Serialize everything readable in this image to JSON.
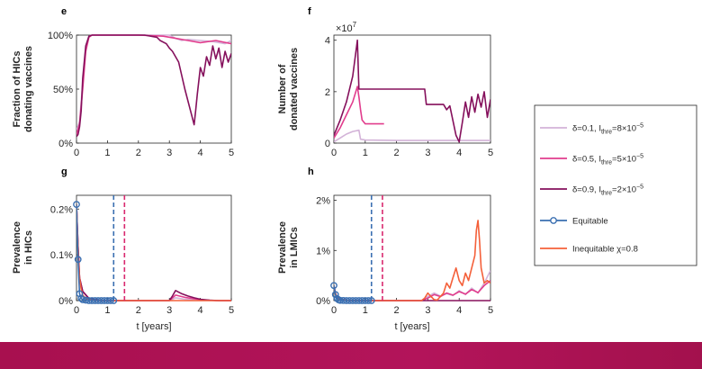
{
  "colors": {
    "delta01": "#d3b3d8",
    "delta05": "#e13d8d",
    "delta09": "#85105c",
    "equitable": "#3a6fb1",
    "inequitable": "#f4603a",
    "vline_blue": "#3a6fb1",
    "vline_pink": "#d9286e",
    "bottom_bar": "#a8104f"
  },
  "legend": {
    "entries": [
      {
        "key": "delta01",
        "pre": "δ=0.1, I",
        "sub": "thre",
        "post": "=8×10",
        "sup": "−5",
        "style": "line",
        "color": "#d3b3d8"
      },
      {
        "key": "delta05",
        "pre": "δ=0.5, I",
        "sub": "thre",
        "post": "=5×10",
        "sup": "−5",
        "style": "line",
        "color": "#e13d8d"
      },
      {
        "key": "delta09",
        "pre": "δ=0.9, I",
        "sub": "thre",
        "post": "=2×10",
        "sup": "−5",
        "style": "line",
        "color": "#85105c"
      },
      {
        "key": "equitable",
        "pre": "Equitable",
        "sub": "",
        "post": "",
        "sup": "",
        "style": "marker",
        "color": "#3a6fb1"
      },
      {
        "key": "inequitable",
        "pre": "Inequitable χ=0.8",
        "sub": "",
        "post": "",
        "sup": "",
        "style": "line",
        "color": "#f4603a"
      }
    ]
  },
  "chart_data": [
    {
      "panel": "e",
      "type": "line",
      "ylabel_lines": [
        "Fraction of HICs",
        "donating vaccines"
      ],
      "xlabel": "",
      "xlim": [
        0,
        5
      ],
      "ylim": [
        0,
        1
      ],
      "x_ticks": [
        0,
        1,
        2,
        3,
        4,
        5
      ],
      "x_tick_labels": [
        "0",
        "1",
        "2",
        "3",
        "4",
        "5"
      ],
      "y_ticks": [
        0,
        0.5,
        1
      ],
      "y_tick_labels": [
        "0%",
        "50%",
        "100%"
      ],
      "exponent_label": "",
      "series": [
        {
          "name": "delta01",
          "color": "#d3b3d8",
          "x": [
            0,
            0.1,
            0.2,
            0.3,
            0.4,
            0.5,
            1,
            2,
            3,
            3.2,
            3.4,
            3.6,
            4,
            4.4,
            4.8,
            5
          ],
          "y": [
            0.12,
            0.2,
            0.55,
            0.9,
            0.99,
            1,
            1,
            1,
            1,
            0.97,
            0.95,
            0.96,
            0.95,
            0.94,
            0.92,
            0.95
          ]
        },
        {
          "name": "delta05",
          "color": "#e13d8d",
          "x": [
            0,
            0.1,
            0.2,
            0.3,
            0.4,
            0.5,
            1,
            2,
            2.8,
            3.2,
            3.6,
            4,
            4.5,
            5
          ],
          "y": [
            0.08,
            0.18,
            0.5,
            0.85,
            0.98,
            1,
            1,
            1,
            0.99,
            0.97,
            0.95,
            0.93,
            0.95,
            0.92
          ]
        },
        {
          "name": "delta09",
          "color": "#85105c",
          "x": [
            0,
            0.05,
            0.1,
            0.15,
            0.2,
            0.3,
            0.4,
            0.5,
            1,
            1.6,
            2,
            2.2,
            2.6,
            2.7,
            2.9,
            3.0,
            3.1,
            3.3,
            3.5,
            3.7,
            3.8,
            3.85,
            3.9,
            4.0,
            4.1,
            4.2,
            4.3,
            4.4,
            4.5,
            4.6,
            4.7,
            4.8,
            4.9,
            5.0
          ],
          "y": [
            0.06,
            0.08,
            0.15,
            0.3,
            0.6,
            0.9,
            0.99,
            1,
            1,
            1,
            1,
            1,
            0.98,
            0.95,
            0.92,
            0.88,
            0.85,
            0.75,
            0.5,
            0.28,
            0.17,
            0.3,
            0.45,
            0.7,
            0.62,
            0.8,
            0.72,
            0.9,
            0.78,
            0.88,
            0.7,
            0.85,
            0.75,
            0.83
          ]
        }
      ]
    },
    {
      "panel": "f",
      "type": "line",
      "ylabel_lines": [
        "Number of",
        "donated vaccines"
      ],
      "xlabel": "",
      "xlim": [
        0,
        5
      ],
      "ylim": [
        0,
        4.2
      ],
      "x_ticks": [
        0,
        1,
        2,
        3,
        4,
        5
      ],
      "x_tick_labels": [
        "0",
        "1",
        "2",
        "3",
        "4",
        "5"
      ],
      "y_ticks": [
        0,
        2,
        4
      ],
      "y_tick_labels": [
        "0",
        "2",
        "4"
      ],
      "exponent_label": "×10",
      "exponent_sup": "7",
      "series": [
        {
          "name": "delta01",
          "color": "#d3b3d8",
          "x": [
            0,
            0.2,
            0.4,
            0.6,
            0.8,
            0.85,
            1,
            2,
            3,
            4,
            5
          ],
          "y": [
            0.05,
            0.2,
            0.35,
            0.45,
            0.5,
            0.15,
            0.12,
            0.1,
            0.1,
            0.1,
            0.1
          ]
        },
        {
          "name": "delta05",
          "color": "#e13d8d",
          "x": [
            0,
            0.2,
            0.4,
            0.6,
            0.75,
            0.8,
            0.85,
            0.9,
            1.0,
            1.2,
            1.6
          ],
          "y": [
            0.2,
            0.6,
            1.1,
            1.6,
            2.2,
            1.8,
            1.3,
            0.9,
            0.75,
            0.75,
            0.75
          ]
        },
        {
          "name": "delta09",
          "color": "#85105c",
          "x": [
            0,
            0.2,
            0.4,
            0.6,
            0.75,
            0.8,
            2.9,
            2.95,
            3.3,
            3.5,
            3.6,
            3.7,
            3.9,
            4.0,
            4.1,
            4.2,
            4.3,
            4.4,
            4.5,
            4.6,
            4.7,
            4.8,
            4.9,
            5.0
          ],
          "y": [
            0.3,
            0.9,
            1.6,
            2.6,
            4.0,
            2.1,
            2.1,
            1.5,
            1.5,
            1.5,
            1.3,
            1.45,
            0.3,
            0.05,
            0.8,
            1.6,
            1.0,
            1.8,
            1.2,
            1.9,
            1.4,
            2.0,
            1.0,
            1.7
          ]
        }
      ]
    },
    {
      "panel": "g",
      "type": "line",
      "ylabel_lines": [
        "Prevalence",
        "in HICs"
      ],
      "xlabel": "t [years]",
      "xlim": [
        0,
        5
      ],
      "ylim": [
        0,
        0.0023
      ],
      "x_ticks": [
        0,
        1,
        2,
        3,
        4,
        5
      ],
      "x_tick_labels": [
        "0",
        "1",
        "2",
        "3",
        "4",
        "5"
      ],
      "y_ticks": [
        0,
        0.001,
        0.002
      ],
      "y_tick_labels": [
        "0%",
        "0.1%",
        "0.2%"
      ],
      "exponent_label": "",
      "vlines": [
        {
          "x": 1.2,
          "color": "#3a6fb1"
        },
        {
          "x": 1.55,
          "color": "#d9286e"
        }
      ],
      "series": [
        {
          "name": "delta01",
          "color": "#d3b3d8",
          "x": [
            0,
            0.05,
            0.1,
            0.2,
            0.4,
            0.8,
            1.2,
            2,
            3,
            3.2,
            3.5,
            4,
            4.5,
            5
          ],
          "y": [
            0.0021,
            0.0012,
            0.0005,
            0.0002,
            5e-05,
            0,
            0,
            0,
            0,
            6e-05,
            3e-05,
            1e-05,
            0,
            0
          ]
        },
        {
          "name": "delta05",
          "color": "#e13d8d",
          "x": [
            0,
            0.05,
            0.1,
            0.2,
            0.4,
            0.8,
            1.2,
            2,
            3,
            3.2,
            3.5,
            4,
            4.5,
            5
          ],
          "y": [
            0.0021,
            0.0012,
            0.0005,
            0.0002,
            5e-05,
            0,
            0,
            0,
            0,
            0.00012,
            7e-05,
            2e-05,
            0,
            0
          ]
        },
        {
          "name": "delta09",
          "color": "#85105c",
          "x": [
            0,
            0.05,
            0.1,
            0.2,
            0.4,
            0.8,
            1.2,
            2,
            3,
            3.1,
            3.2,
            3.4,
            3.6,
            3.8,
            4,
            4.3,
            4.6,
            5
          ],
          "y": [
            0.0021,
            0.0012,
            0.0005,
            0.0002,
            5e-05,
            0,
            0,
            0,
            0,
            0.0001,
            0.00022,
            0.00015,
            0.0001,
            6e-05,
            3e-05,
            1e-05,
            0,
            0
          ]
        },
        {
          "name": "inequitable",
          "color": "#f4603a",
          "x": [
            0,
            0.03,
            0.06,
            0.1,
            0.15,
            0.2,
            0.3,
            0.4,
            0.6,
            0.8,
            1.2,
            2,
            3,
            4,
            5
          ],
          "y": [
            0.0021,
            0.0015,
            0.0009,
            0.0005,
            0.00025,
            0.00012,
            5e-05,
            2e-05,
            0,
            0,
            0,
            0,
            0,
            0,
            0
          ]
        },
        {
          "name": "equitable",
          "color": "#3a6fb1",
          "marker": true,
          "x": [
            0,
            0.05,
            0.1,
            0.15,
            0.2,
            0.3,
            0.4,
            0.5,
            0.6,
            0.7,
            0.8,
            0.9,
            1.0,
            1.1,
            1.2
          ],
          "y": [
            0.0021,
            0.0009,
            0.00015,
            5e-05,
            2e-05,
            1e-05,
            0,
            0,
            0,
            0,
            0,
            0,
            0,
            0,
            0
          ]
        }
      ]
    },
    {
      "panel": "h",
      "type": "line",
      "ylabel_lines": [
        "Prevalence",
        "in LMICs"
      ],
      "xlabel": "t [years]",
      "xlim": [
        0,
        5
      ],
      "ylim": [
        0,
        0.021
      ],
      "x_ticks": [
        0,
        1,
        2,
        3,
        4,
        5
      ],
      "x_tick_labels": [
        "0",
        "1",
        "2",
        "3",
        "4",
        "5"
      ],
      "y_ticks": [
        0,
        0.01,
        0.02
      ],
      "y_tick_labels": [
        "0%",
        "1%",
        "2%"
      ],
      "exponent_label": "",
      "vlines": [
        {
          "x": 1.2,
          "color": "#3a6fb1"
        },
        {
          "x": 1.55,
          "color": "#d9286e"
        }
      ],
      "series": [
        {
          "name": "delta01",
          "color": "#d3b3d8",
          "x": [
            0,
            0.05,
            0.1,
            0.2,
            0.4,
            1,
            2,
            2.8,
            3.0,
            3.2,
            3.4,
            3.6,
            3.8,
            4.0,
            4.2,
            4.4,
            4.6,
            4.8,
            5
          ],
          "y": [
            0.003,
            0.0015,
            0.0006,
            0.0002,
            5e-05,
            0,
            0,
            0,
            0.0008,
            0.0015,
            0.0009,
            0.0014,
            0.001,
            0.002,
            0.0012,
            0.0025,
            0.0015,
            0.0035,
            0.006
          ]
        },
        {
          "name": "delta05",
          "color": "#e13d8d",
          "x": [
            0,
            0.05,
            0.1,
            0.2,
            0.4,
            1,
            2,
            2.8,
            3.0,
            3.2,
            3.4,
            3.6,
            3.8,
            4.0,
            4.2,
            4.4,
            4.6,
            4.8,
            5
          ],
          "y": [
            0.003,
            0.0015,
            0.0006,
            0.0002,
            5e-05,
            0,
            0,
            0,
            0.0005,
            0.0012,
            0.0008,
            0.0015,
            0.0011,
            0.0018,
            0.0013,
            0.0022,
            0.0016,
            0.003,
            0.004
          ]
        },
        {
          "name": "delta09",
          "color": "#85105c",
          "x": [
            0,
            0.05,
            0.1,
            0.2,
            0.4,
            1,
            2,
            3,
            3.5,
            4,
            4.5,
            5
          ],
          "y": [
            0.003,
            0.0015,
            0.0006,
            0.0002,
            5e-05,
            0,
            0,
            0,
            0,
            0,
            0,
            0
          ]
        },
        {
          "name": "inequitable",
          "color": "#f4603a",
          "x": [
            0,
            0.03,
            0.06,
            0.1,
            0.2,
            0.3,
            0.5,
            1,
            2,
            2.8,
            2.9,
            3.0,
            3.1,
            3.2,
            3.3,
            3.5,
            3.6,
            3.7,
            3.8,
            3.9,
            4.0,
            4.1,
            4.2,
            4.3,
            4.4,
            4.5,
            4.55,
            4.6,
            4.65,
            4.7,
            4.8,
            4.9,
            5.0
          ],
          "y": [
            0.003,
            0.002,
            0.0012,
            0.0006,
            0.0002,
            8e-05,
            2e-05,
            0,
            0,
            0,
            0.0005,
            0.0015,
            0.0008,
            0.0002,
            0.0001,
            0.0015,
            0.0035,
            0.0025,
            0.0045,
            0.0065,
            0.004,
            0.003,
            0.0055,
            0.004,
            0.0065,
            0.009,
            0.014,
            0.016,
            0.012,
            0.0065,
            0.0035,
            0.004,
            0.0035
          ]
        },
        {
          "name": "equitable",
          "color": "#3a6fb1",
          "marker": true,
          "x": [
            0,
            0.05,
            0.1,
            0.15,
            0.2,
            0.3,
            0.4,
            0.5,
            0.6,
            0.7,
            0.8,
            0.9,
            1.0,
            1.1,
            1.2
          ],
          "y": [
            0.003,
            0.0012,
            0.0004,
            0.00015,
            5e-05,
            2e-05,
            0,
            0,
            0,
            0,
            0,
            0,
            0,
            0,
            0
          ]
        }
      ]
    }
  ]
}
